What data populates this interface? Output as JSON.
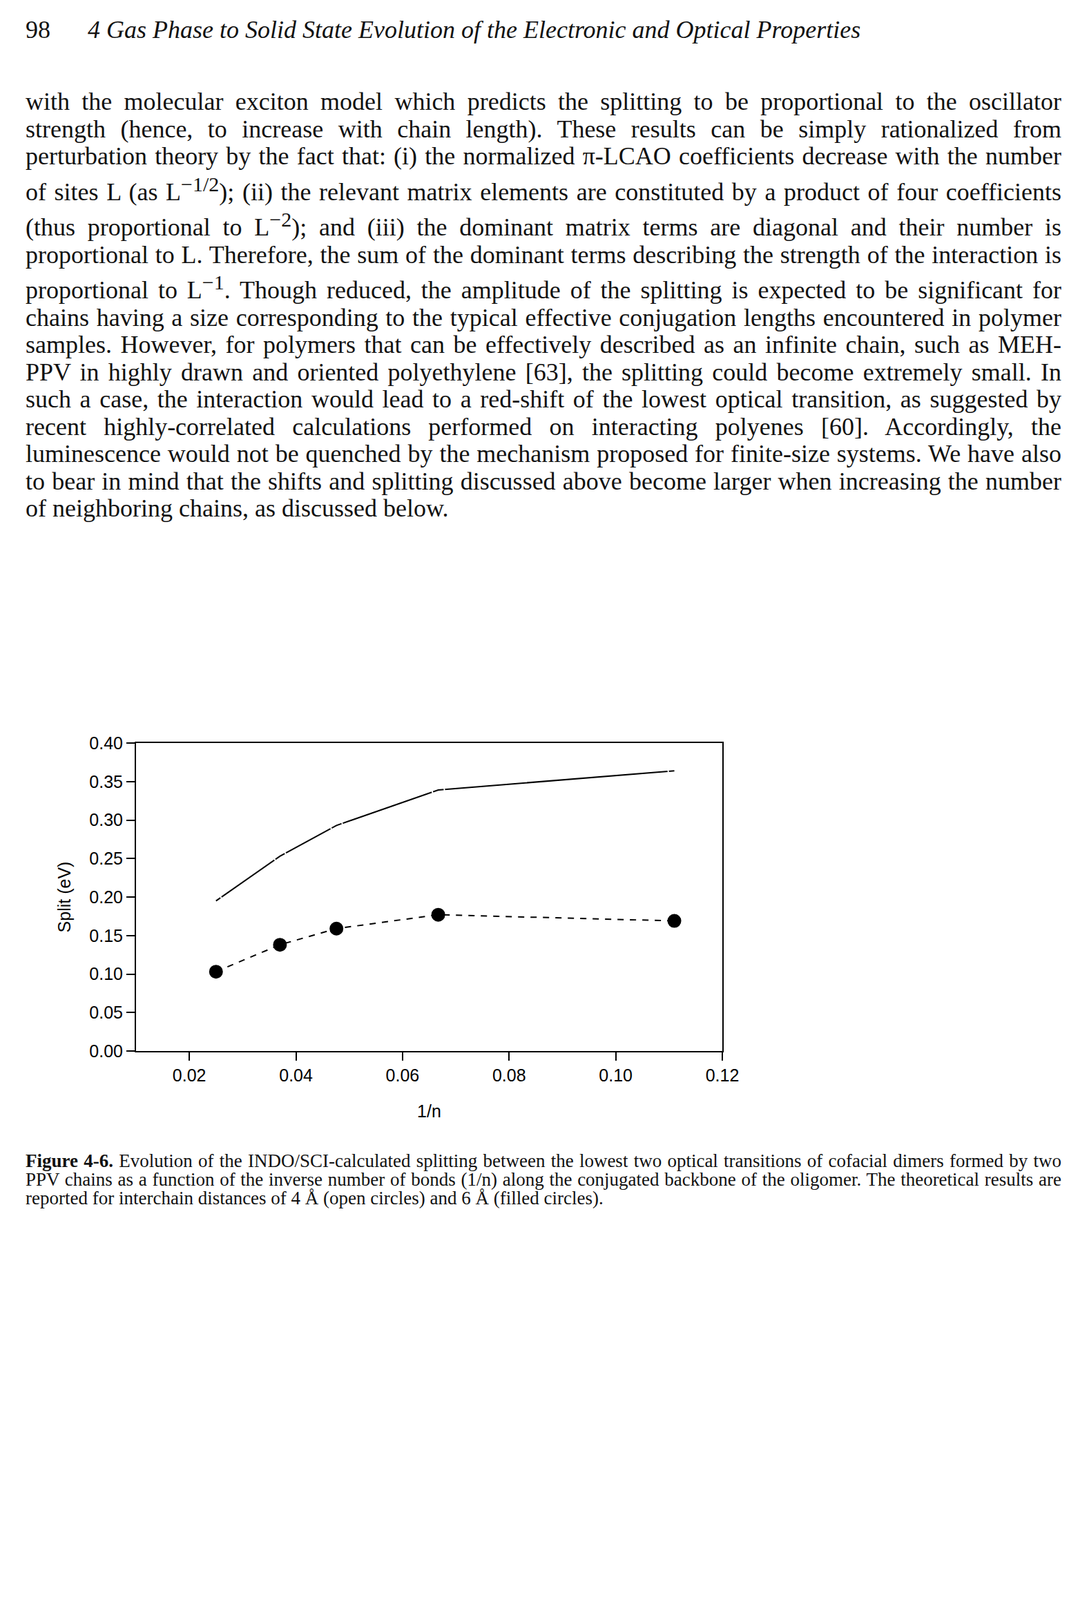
{
  "header": {
    "page_number": "98",
    "running_head": "4 Gas Phase to Solid State Evolution of the Electronic and Optical Properties"
  },
  "body": "with the molecular exciton model which predicts the splitting to be proportional to the oscillator strength (hence, to increase with chain length). These results can be simply rationalized from perturbation theory by the fact that: (i) the normalized π-LCAO coefficients decrease with the number of sites L (as L<sup>−1/2</sup>); (ii) the relevant matrix elements are constituted by a product of four coefficients (thus proportional to L<sup>−2</sup>); and (iii) the dominant matrix terms are diagonal and their number is proportional to L. Therefore, the sum of the dominant terms describing the strength of the interaction is proportional to L<sup>−1</sup>. Though reduced, the amplitude of the splitting is expected to be significant for chains having a size corresponding to the typical effective conjugation lengths encountered in polymer samples. However, for polymers that can be effectively described as an infinite chain, such as MEH-PPV in highly drawn and oriented polyethylene [63], the splitting could become extremely small. In such a case, the interaction would lead to a red-shift of the lowest optical transition, as suggested by recent highly-correlated calculations performed on interacting polyenes [60]. Accordingly, the luminescence would not be quenched by the mechanism proposed for finite-size systems. We have also to bear in mind that the shifts and splitting discussed above become larger when increasing the number of neighboring chains, as discussed below.",
  "chart_data": {
    "type": "line",
    "x_label": "1/n",
    "y_label": "Split (eV)",
    "xlim": [
      0.01,
      0.12
    ],
    "xticks": [
      0.02,
      0.04,
      0.06,
      0.08,
      {
        "value": 0.1,
        "label": "0.10"
      },
      0.12
    ],
    "ylim": [
      0,
      0.4
    ],
    "yticks": [
      {
        "value": 0,
        "label": "0.00"
      },
      0.05,
      {
        "value": 0.1,
        "label": "0.10"
      },
      0.15,
      {
        "value": 0.2,
        "label": "0.20"
      },
      0.25,
      {
        "value": 0.3,
        "label": "0.30"
      },
      0.35,
      {
        "value": 0.4,
        "label": "0.40"
      }
    ],
    "grid": false,
    "series": [
      {
        "color": "#000000",
        "marker": "open circle",
        "line_style": "solid",
        "x": [
          0.025,
          0.037,
          0.0476,
          0.0667,
          0.111
        ],
        "values": [
          0.195,
          0.253,
          0.293,
          0.339,
          0.364
        ]
      },
      {
        "color": "#000000",
        "marker": "filled circle",
        "line_style": "dashed",
        "x": [
          0.025,
          0.037,
          0.0476,
          0.0667,
          0.111
        ],
        "values": [
          0.103,
          0.138,
          0.159,
          0.177,
          0.169
        ]
      }
    ]
  },
  "caption": {
    "label": "Figure 4-6.",
    "text": "Evolution of the INDO/SCI-calculated splitting between the lowest two optical transitions of cofacial dimers formed by two PPV chains as a function of the inverse number of bonds (1/n) along the conjugated backbone of the oligomer. The theoretical results are reported for interchain distances of 4 Å (open circles) and 6 Å (filled circles)."
  }
}
